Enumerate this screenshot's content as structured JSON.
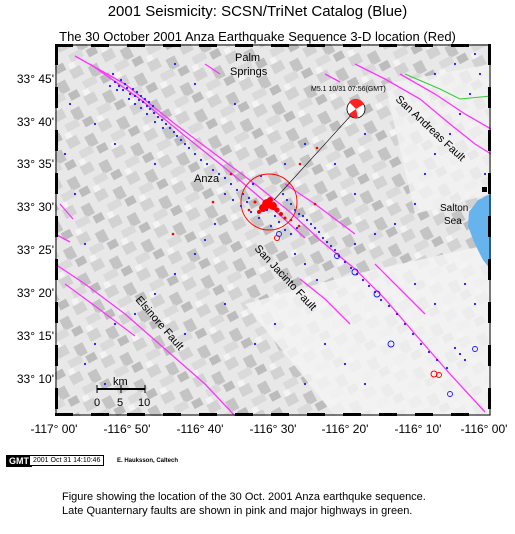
{
  "title": "2001 Seismicity: SCSN/TriNet Catalog (Blue)",
  "subtitle": "The 30 October 2001 Anza Earthquake Sequence 3-D location (Red)",
  "lat_labels": [
    "33° 45'",
    "33° 40'",
    "33° 35'",
    "33° 30'",
    "33° 25'",
    "33° 20'",
    "33° 15'",
    "33° 10'"
  ],
  "lon_labels": [
    "-117° 00'",
    "-116° 50'",
    "-116° 40'",
    "-116° 30'",
    "-116° 20'",
    "-116° 10'",
    "-116° 00'"
  ],
  "place_labels": {
    "palm_springs_1": "Palm",
    "palm_springs_2": "Springs",
    "anza": "Anza",
    "salton_1": "Salton",
    "salton_2": "Sea"
  },
  "fault_labels": {
    "san_andreas": "San Andreas Fault",
    "san_jacinto": "San Jacinto Fault",
    "elsinore": "Elsinore Fault"
  },
  "mainshock_label": "M5.1 10/31 07:56(GMT)",
  "scale_bar": {
    "unit": "km",
    "ticks": [
      "0",
      "5",
      "10"
    ]
  },
  "gmt_logo": "GMT",
  "gmt_timestamp": "2001 Oct 31 14:10:46",
  "credit": "E. Hauksson, Caltech",
  "caption": [
    "Figure showing the location of the 30 Oct. 2001 Anza earthquke sequence.",
    "Late Quanternary faults are shown in pink and major highways in green."
  ],
  "colors": {
    "background_seismicity": "#1a1aff",
    "anza_sequence": "#ff0000",
    "faults": "#ff33ff",
    "highways": "#33cc33",
    "water": "#66b3ee"
  }
}
